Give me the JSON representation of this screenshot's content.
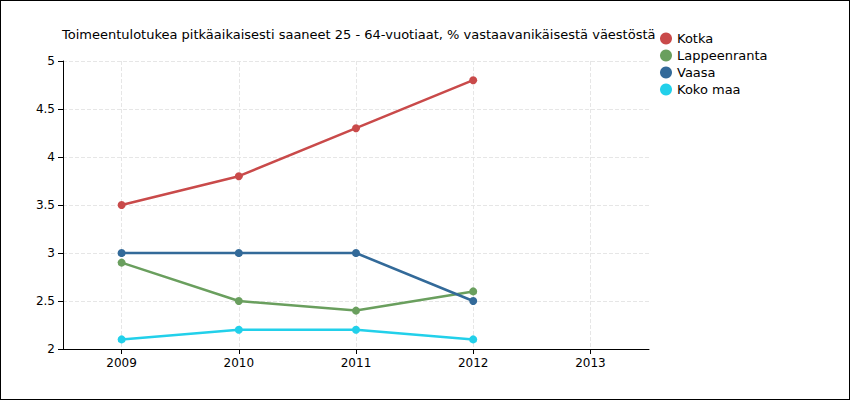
{
  "chart_data": {
    "type": "line",
    "title": "Toimeentulotukea pitkäaikaisesti saaneet 25 - 64-vuotiaat, % vastaavanikäisestä väestöstä",
    "x": [
      2009,
      2010,
      2011,
      2012
    ],
    "xlim": [
      2008.5,
      2013.5
    ],
    "xticks": [
      2009,
      2010,
      2011,
      2012,
      2013
    ],
    "ylim": [
      2,
      5
    ],
    "yticks": [
      2,
      2.5,
      3,
      3.5,
      4,
      4.5,
      5
    ],
    "grid": true,
    "legend": "right",
    "marker": "circle",
    "line_style": "solid",
    "series": [
      {
        "name": "Kotka",
        "color": "#c94a4a",
        "values": [
          3.5,
          3.8,
          4.3,
          4.8
        ]
      },
      {
        "name": "Lappeenranta",
        "color": "#6a9f5e",
        "values": [
          2.9,
          2.5,
          2.4,
          2.6
        ]
      },
      {
        "name": "Vaasa",
        "color": "#336a99",
        "values": [
          3.0,
          3.0,
          3.0,
          2.5
        ]
      },
      {
        "name": "Koko maa",
        "color": "#22d0ea",
        "values": [
          2.1,
          2.2,
          2.2,
          2.1
        ]
      }
    ]
  }
}
